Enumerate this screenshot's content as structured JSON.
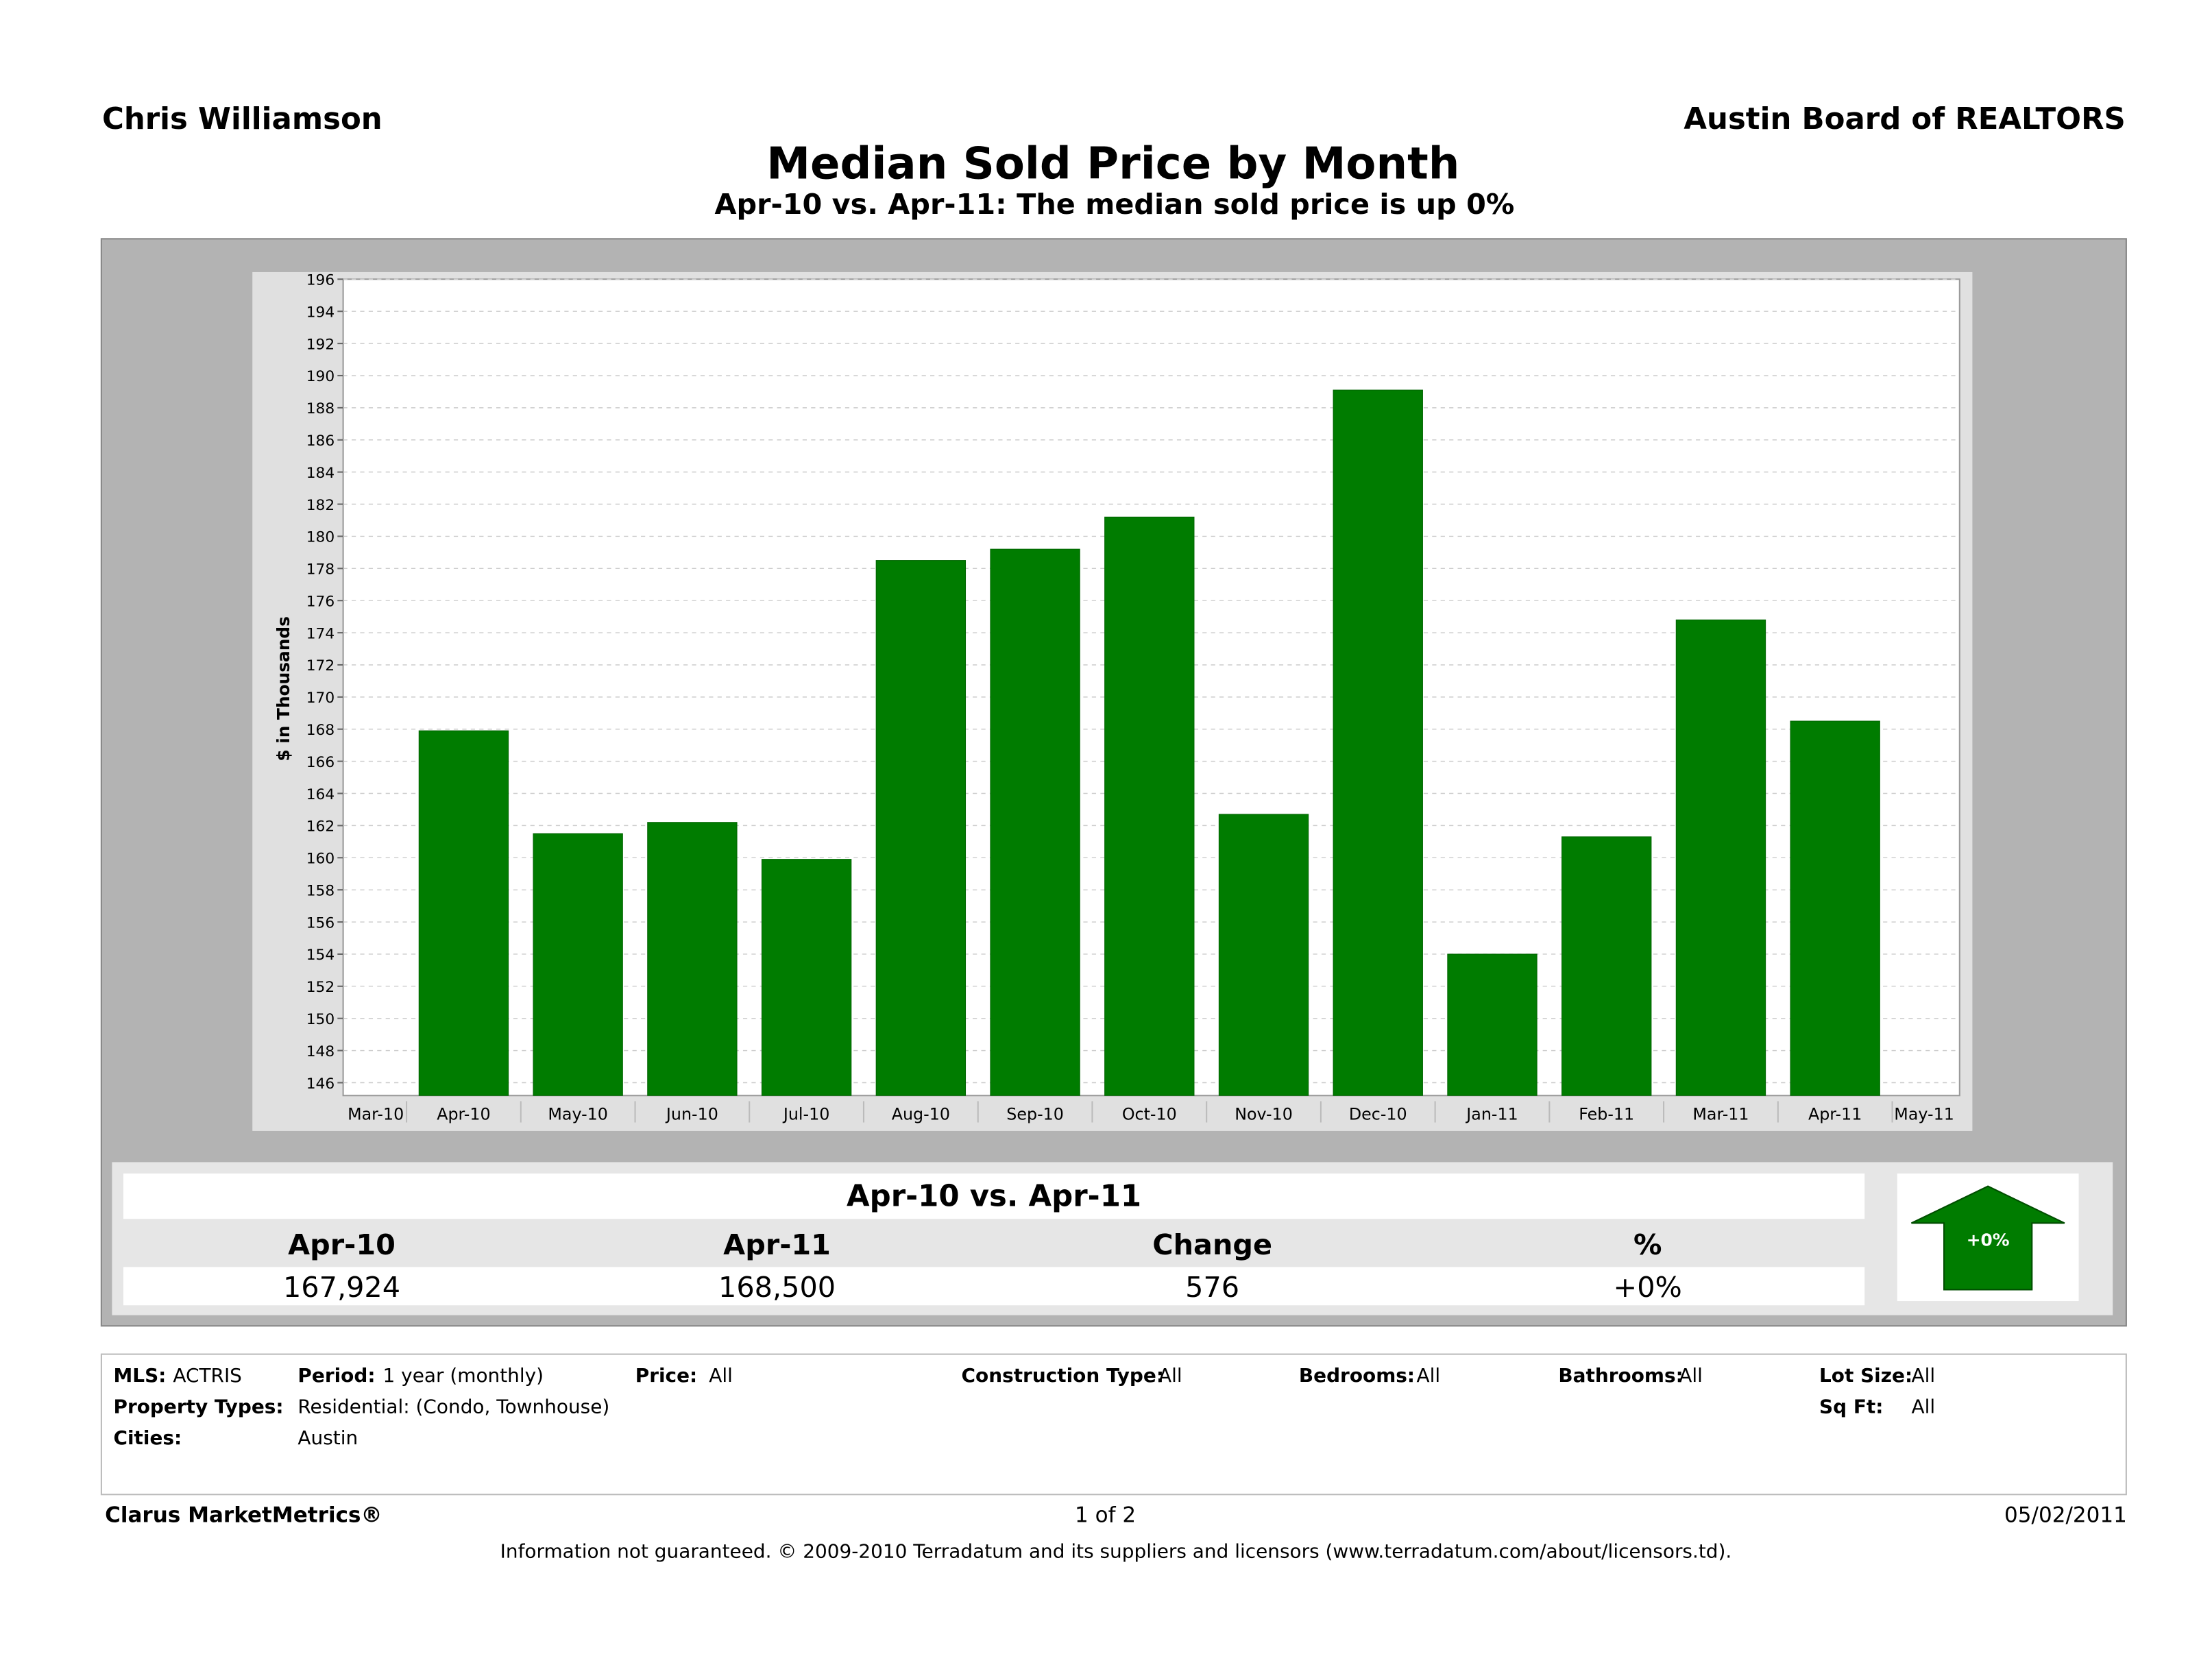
{
  "header": {
    "agent": "Chris Williamson",
    "board": "Austin Board of REALTORS"
  },
  "chart_data": {
    "type": "bar",
    "title": "Median Sold Price by Month",
    "subtitle": "Apr-10 vs. Apr-11:  The median sold price is up 0%",
    "ylabel": "$ in Thousands",
    "xlabel": "",
    "ylim": [
      145.2,
      196
    ],
    "yticks": [
      146,
      148,
      150,
      152,
      154,
      156,
      158,
      160,
      162,
      164,
      166,
      168,
      170,
      172,
      174,
      176,
      178,
      180,
      182,
      184,
      186,
      188,
      190,
      192,
      194,
      196
    ],
    "axis_labels": [
      "Mar-10",
      "Apr-10",
      "May-10",
      "Jun-10",
      "Jul-10",
      "Aug-10",
      "Sep-10",
      "Oct-10",
      "Nov-10",
      "Dec-10",
      "Jan-11",
      "Feb-11",
      "Mar-11",
      "Apr-11",
      "May-11"
    ],
    "categories": [
      "Apr-10",
      "May-10",
      "Jun-10",
      "Jul-10",
      "Aug-10",
      "Sep-10",
      "Oct-10",
      "Nov-10",
      "Dec-10",
      "Jan-11",
      "Feb-11",
      "Mar-11",
      "Apr-11"
    ],
    "values": [
      167.9,
      161.5,
      162.2,
      159.9,
      178.5,
      179.2,
      181.2,
      162.7,
      189.1,
      154.0,
      161.3,
      174.8,
      168.5
    ],
    "grid": true,
    "bar_color": "#007c00"
  },
  "summary": {
    "heading": "Apr-10 vs. Apr-11",
    "columns": [
      "Apr-10",
      "Apr-11",
      "Change",
      "%"
    ],
    "values": [
      "167,924",
      "168,500",
      "576",
      "+0%"
    ],
    "badge": "+0%",
    "badge_direction": "up",
    "badge_color": "#007c00"
  },
  "filters": {
    "mls_label": "MLS:",
    "mls": "ACTRIS",
    "period_label": "Period:",
    "period": "1 year (monthly)",
    "price_label": "Price:",
    "price": "All",
    "construction_label": "Construction Type:",
    "construction": "All",
    "bedrooms_label": "Bedrooms:",
    "bedrooms": "All",
    "bathrooms_label": "Bathrooms:",
    "bathrooms": "All",
    "lot_label": "Lot Size:",
    "lot": "All",
    "ptype_label": "Property Types:",
    "ptype": "Residential: (Condo, Townhouse)",
    "sqft_label": "Sq Ft:",
    "sqft": "All",
    "cities_label": "Cities:",
    "cities": "Austin"
  },
  "footer": {
    "brand": "Clarus MarketMetrics®",
    "page": "1 of 2",
    "date": "05/02/2011",
    "disclaimer": "Information not guaranteed.  © 2009-2010 Terradatum and its suppliers and licensors (www.terradatum.com/about/licensors.td)."
  }
}
